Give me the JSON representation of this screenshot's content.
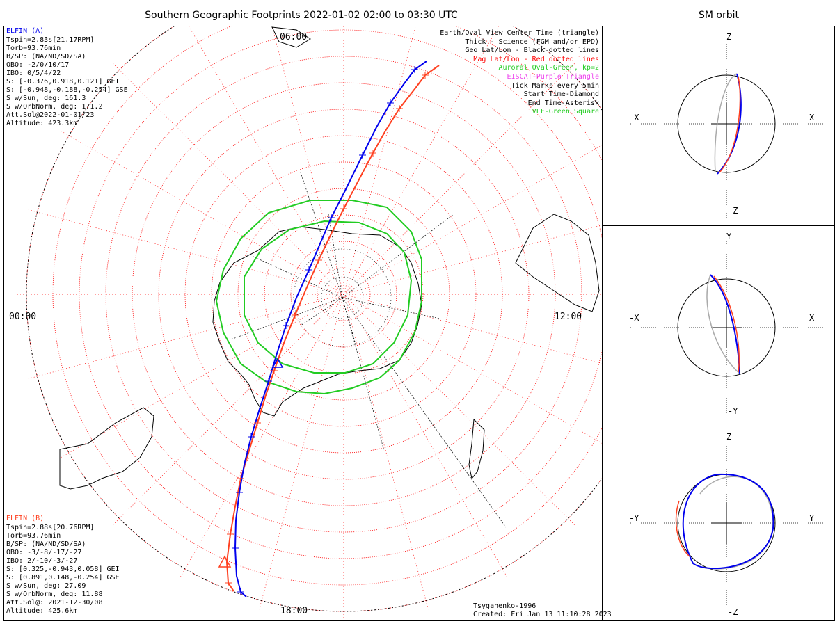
{
  "main_title": "Southern Geographic Footprints 2022-01-02 02:00 to 03:30 UTC",
  "side_title": "SM orbit",
  "colors": {
    "elfin_a": "#0000ee",
    "elfin_b": "#ff4020",
    "oval": "#22cc22",
    "mag_grid": "#ff0000",
    "geo_grid": "#000000",
    "eiscat": "#ee44ee",
    "orbit_gray": "#aaaaaa"
  },
  "elfin_a": {
    "name": "ELFIN (A)",
    "lines": [
      "Tspin=2.83s[21.17RPM]",
      "Torb=93.76min",
      "B/SP: (NA/ND/SD/SA)",
      "OBO: -2/0/10/17",
      "IBO: 0/5/4/22",
      "S: [-0.376,0.918,0.121] GEI",
      "S: [-0.948,-0.188,-0.254] GSE",
      "S w/Sun, deg: 161.3",
      "S w/OrbNorm, deg: 171.2",
      "Att.Sol@2022-01-01/23",
      "Altitude: 423.3km"
    ]
  },
  "elfin_b": {
    "name": "ELFIN (B)",
    "lines": [
      "Tspin=2.88s[20.76RPM]",
      "Torb=93.76min",
      "B/SP: (NA/ND/SD/SA)",
      "OBO: -3/-8/-17/-27",
      "IBO: 2/-10/-3/-27",
      "S: [0.325,-0.943,0.058] GEI",
      "S: [0.891,0.148,-0.254] GSE",
      "S w/Sun, deg: 27.09",
      "S w/OrbNorm, deg: 11.88",
      "Att.Sol@: 2021-12-30/08",
      "Altitude: 425.6km"
    ]
  },
  "legend": [
    {
      "text": "Earth/Oval View Center Time (triangle)",
      "color": "#000000"
    },
    {
      "text": "Thick - Science (FGM and/or EPD)",
      "color": "#000000"
    },
    {
      "text": "Geo Lat/Lon - Black dotted lines",
      "color": "#000000"
    },
    {
      "text": "Mag Lat/Lon - Red dotted lines",
      "color": "#ff0000"
    },
    {
      "text": "Auroral Oval-Green, kp=2",
      "color": "#22cc22"
    },
    {
      "text": "EISCAT-Purple Triangle",
      "color": "#ee44ee"
    },
    {
      "text": "Tick Marks every 5min",
      "color": "#000000"
    },
    {
      "text": "Start Time-Diamond",
      "color": "#000000"
    },
    {
      "text": "End Time-Asterisk",
      "color": "#000000"
    },
    {
      "text": "VLF-Green Square",
      "color": "#22cc22"
    }
  ],
  "map_labels": {
    "top": "06:00",
    "right": "12:00",
    "bottom": "18:00",
    "left": "00:00"
  },
  "footer": {
    "model": "Tsyganenko-1996",
    "created": "Created: Fri Jan 13 11:10:28 2023"
  },
  "chart_data": [
    {
      "type": "line",
      "title": "Southern Geographic Footprints 2022-01-02 02:00 to 03:30 UTC",
      "projection": "polar (south pole), MLT clock labels",
      "clock_labels": [
        "06:00",
        "12:00",
        "18:00",
        "00:00"
      ],
      "series": [
        {
          "name": "ELFIN (A)",
          "color": "#0000ee"
        },
        {
          "name": "ELFIN (B)",
          "color": "#ff4020"
        }
      ],
      "tick_interval_min": 5
    },
    {
      "type": "line",
      "title": "SM orbit",
      "panels": [
        {
          "h_axis": [
            "-X",
            "X"
          ],
          "v_axis": [
            "Z",
            "-Z"
          ]
        },
        {
          "h_axis": [
            "-X",
            "X"
          ],
          "v_axis": [
            "Y",
            "-Y"
          ]
        },
        {
          "h_axis": [
            "-Y",
            "Y"
          ],
          "v_axis": [
            "Z",
            "-Z"
          ]
        }
      ]
    }
  ],
  "orbit_panels": [
    {
      "top": "Z",
      "bottom": "-Z",
      "left": "-X",
      "right": "X"
    },
    {
      "top": "Y",
      "bottom": "-Y",
      "left": "-X",
      "right": "X"
    },
    {
      "top": "Z",
      "bottom": "-Z",
      "left": "-Y",
      "right": "Y"
    }
  ]
}
